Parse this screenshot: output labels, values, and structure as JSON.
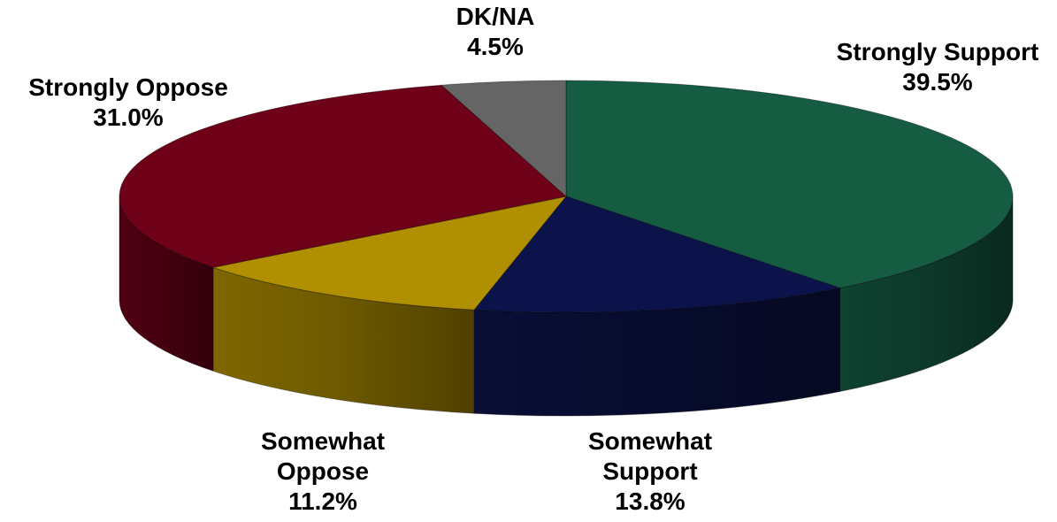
{
  "chart_data": {
    "type": "pie",
    "style": "3d",
    "title": "",
    "slices": [
      {
        "label": "Strongly Support",
        "value": 39.5,
        "display": "39.5%",
        "color": "#155c43"
      },
      {
        "label": "Somewhat Support",
        "value": 13.8,
        "display": "13.8%",
        "color": "#0b134a"
      },
      {
        "label": "Somewhat Oppose",
        "value": 11.2,
        "display": "11.2%",
        "color": "#b08f00"
      },
      {
        "label": "Strongly Oppose",
        "value": 31.0,
        "display": "31.0%",
        "color": "#6e0018"
      },
      {
        "label": "DK/NA",
        "value": 4.5,
        "display": "4.5%",
        "color": "#656565"
      }
    ]
  }
}
